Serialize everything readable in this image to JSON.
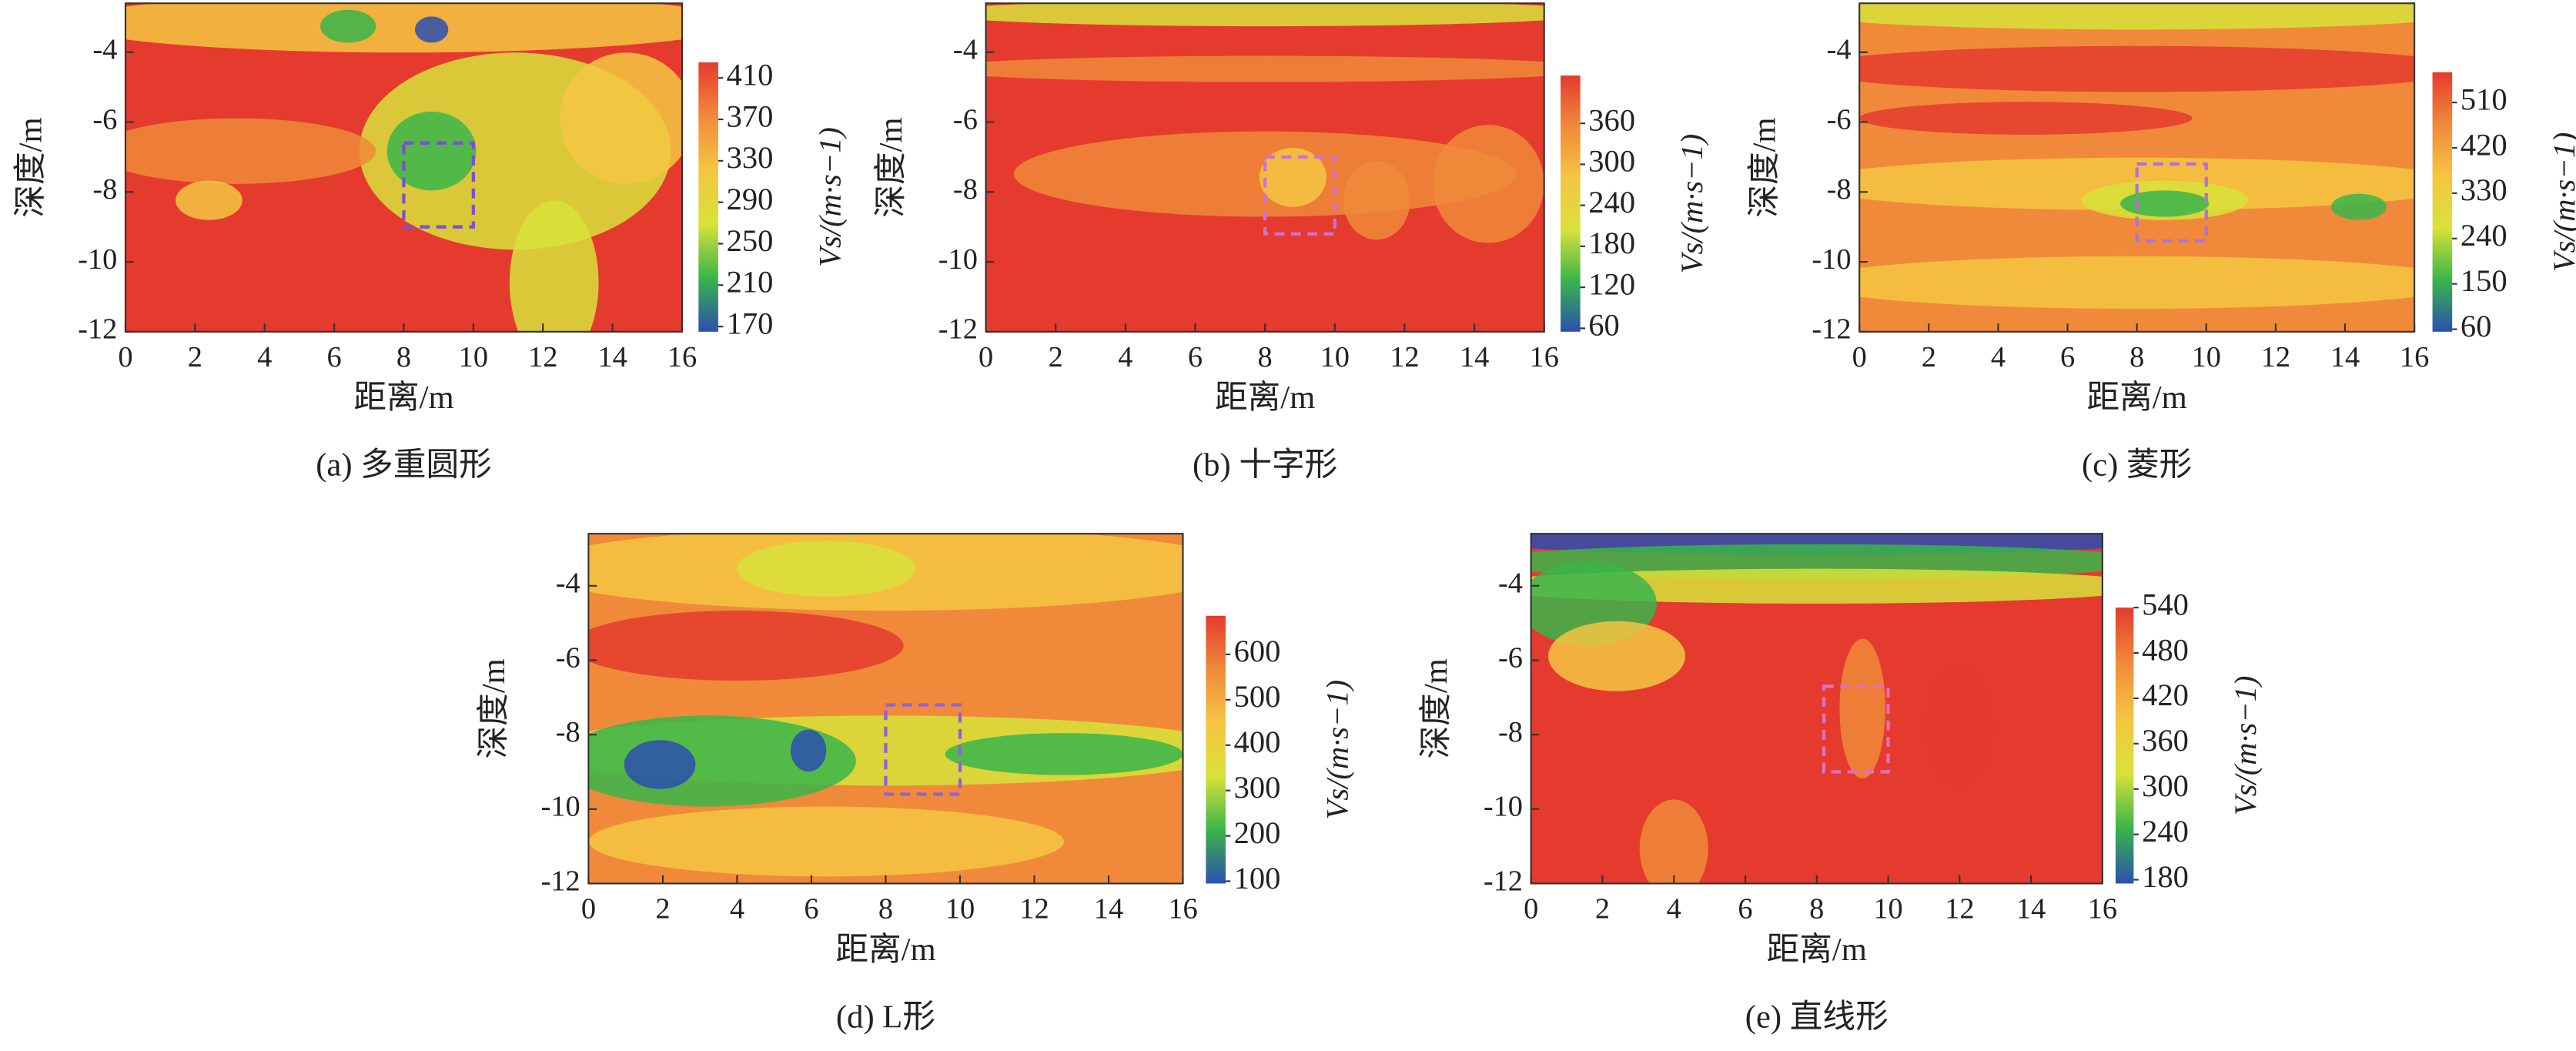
{
  "chart_data": [
    {
      "type": "contour",
      "caption": "(a) 多重圆形",
      "xlabel": "距离/m",
      "ylabel": "深度/m",
      "colorbar_label": "Vs/(m·s−1)",
      "xlim": [
        0,
        16
      ],
      "xticks": [
        0,
        2,
        4,
        6,
        8,
        10,
        12,
        14,
        16
      ],
      "ylim": [
        -12,
        -2.6
      ],
      "yticks": [
        -12,
        -10,
        -8,
        -6,
        -4
      ],
      "clim": [
        165,
        425
      ],
      "cticks": [
        170,
        210,
        250,
        290,
        330,
        370,
        410
      ],
      "colormap": [
        "#2b4fb0",
        "#3ab54a",
        "#d8e23a",
        "#f5c542",
        "#f08a3a",
        "#e53a2e"
      ],
      "target_box": {
        "x": [
          8,
          10
        ],
        "y": [
          -9,
          -6.6
        ],
        "color": "#7b4fd6"
      }
    },
    {
      "type": "contour",
      "caption": "(b) 十字形",
      "xlabel": "距离/m",
      "ylabel": "深度/m",
      "colorbar_label": "Vs/(m·s−1)",
      "xlim": [
        0,
        16
      ],
      "xticks": [
        0,
        2,
        4,
        6,
        8,
        10,
        12,
        14,
        16
      ],
      "ylim": [
        -12,
        -2.6
      ],
      "yticks": [
        -12,
        -10,
        -8,
        -6,
        -4
      ],
      "clim": [
        55,
        430
      ],
      "cticks": [
        60,
        120,
        180,
        240,
        300,
        360
      ],
      "colormap": [
        "#2b4fb0",
        "#3ab54a",
        "#d8e23a",
        "#f5c542",
        "#f08a3a",
        "#e53a2e"
      ],
      "target_box": {
        "x": [
          8,
          10
        ],
        "y": [
          -9.2,
          -7
        ],
        "color": "#d070d0"
      }
    },
    {
      "type": "contour",
      "caption": "(c) 菱形",
      "xlabel": "距离/m",
      "ylabel": "深度/m",
      "colorbar_label": "Vs/(m·s−1)",
      "xlim": [
        0,
        16
      ],
      "xticks": [
        0,
        2,
        4,
        6,
        8,
        10,
        12,
        14,
        16
      ],
      "ylim": [
        -12,
        -2.6
      ],
      "yticks": [
        -12,
        -10,
        -8,
        -6,
        -4
      ],
      "clim": [
        55,
        570
      ],
      "cticks": [
        60,
        150,
        240,
        330,
        420,
        510
      ],
      "colormap": [
        "#2b4fb0",
        "#3ab54a",
        "#d8e23a",
        "#f5c542",
        "#f08a3a",
        "#e53a2e"
      ],
      "target_box": {
        "x": [
          8,
          10
        ],
        "y": [
          -9.4,
          -7.2
        ],
        "color": "#b070e0"
      }
    },
    {
      "type": "contour",
      "caption": "(d) L形",
      "xlabel": "距离/m",
      "ylabel": "深度/m",
      "colorbar_label": "Vs/(m·s−1)",
      "xlim": [
        0,
        16
      ],
      "xticks": [
        0,
        2,
        4,
        6,
        8,
        10,
        12,
        14,
        16
      ],
      "ylim": [
        -12,
        -2.6
      ],
      "yticks": [
        -12,
        -10,
        -8,
        -6,
        -4
      ],
      "clim": [
        95,
        685
      ],
      "cticks": [
        100,
        200,
        300,
        400,
        500,
        600
      ],
      "colormap": [
        "#2b4fb0",
        "#3ab54a",
        "#d8e23a",
        "#f5c542",
        "#f08a3a",
        "#e53a2e"
      ],
      "target_box": {
        "x": [
          8,
          10
        ],
        "y": [
          -9.6,
          -7.2
        ],
        "color": "#9060e0"
      }
    },
    {
      "type": "contour",
      "caption": "(e) 直线形",
      "xlabel": "距离/m",
      "ylabel": "深度/m",
      "colorbar_label": "Vs/(m·s−1)",
      "xlim": [
        0,
        16
      ],
      "xticks": [
        0,
        2,
        4,
        6,
        8,
        10,
        12,
        14,
        16
      ],
      "ylim": [
        -12,
        -2.6
      ],
      "yticks": [
        -12,
        -10,
        -8,
        -6,
        -4
      ],
      "clim": [
        175,
        540
      ],
      "cticks": [
        180,
        240,
        300,
        360,
        420,
        480,
        540
      ],
      "colormap": [
        "#2b4fb0",
        "#3ab54a",
        "#d8e23a",
        "#f5c542",
        "#f08a3a",
        "#e53a2e"
      ],
      "target_box": {
        "x": [
          8.2,
          10
        ],
        "y": [
          -9,
          -6.7
        ],
        "color": "#e070c0"
      }
    }
  ]
}
